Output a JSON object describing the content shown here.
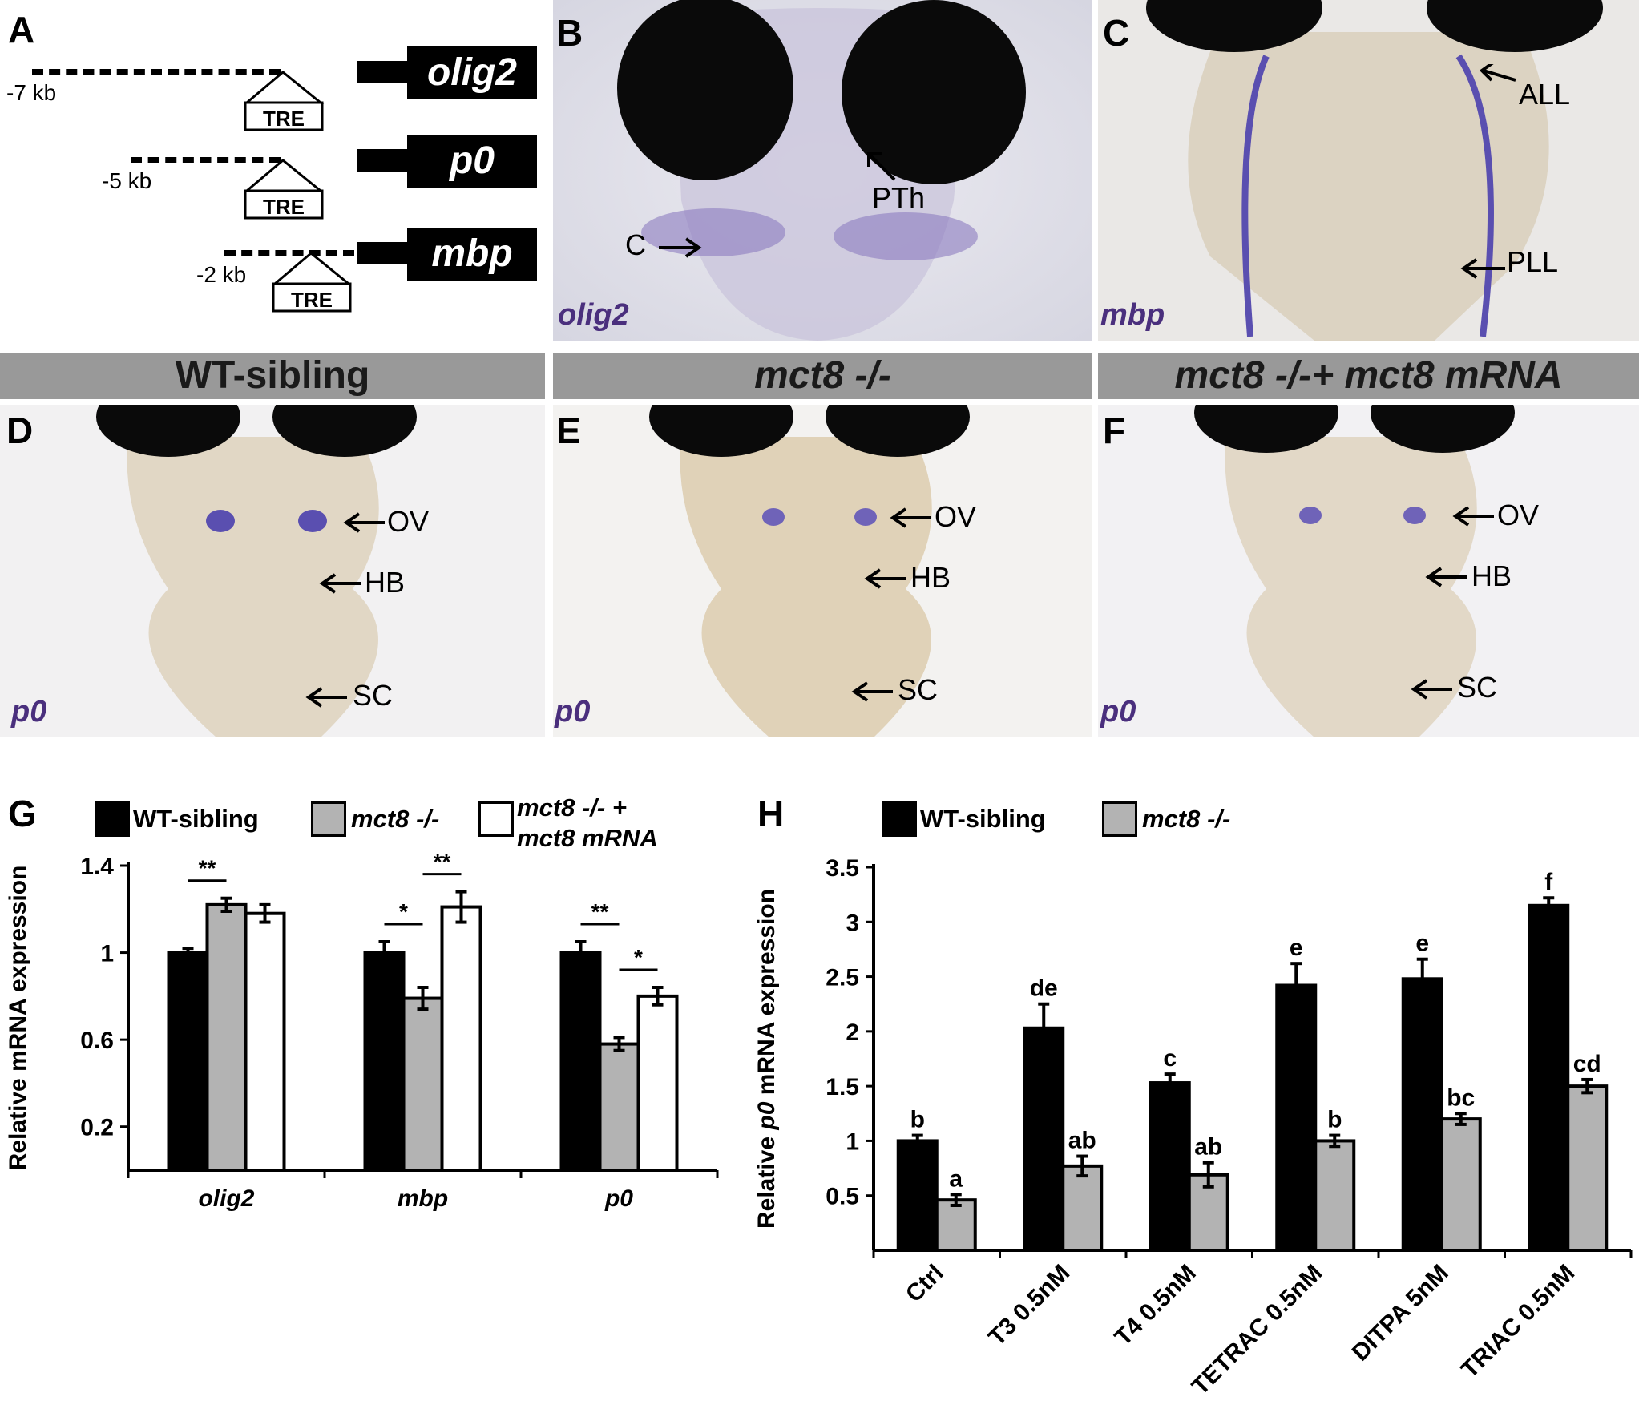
{
  "panel_letters": {
    "A": "A",
    "B": "B",
    "C": "C",
    "D": "D",
    "E": "E",
    "F": "F",
    "G": "G",
    "H": "H"
  },
  "panel_a": {
    "genes": [
      {
        "name": "olig2",
        "distance": "-7 kb",
        "element": "TRE"
      },
      {
        "name": "p0",
        "distance": "-5 kb",
        "element": "TRE"
      },
      {
        "name": "mbp",
        "distance": "-2 kb",
        "element": "TRE"
      }
    ]
  },
  "panel_b": {
    "gene": "olig2",
    "labels": {
      "c": "C",
      "pth": "PTh"
    }
  },
  "panel_c": {
    "gene": "mbp",
    "labels": {
      "all": "ALL",
      "pll": "PLL"
    }
  },
  "headers": {
    "d": "WT-sibling",
    "e": "mct8 -/-",
    "f": "mct8 -/-+ mct8 mRNA"
  },
  "panel_d": {
    "gene": "p0",
    "labels": {
      "ov": "OV",
      "hb": "HB",
      "sc": "SC"
    }
  },
  "panel_e": {
    "gene": "p0",
    "labels": {
      "ov": "OV",
      "hb": "HB",
      "sc": "SC"
    }
  },
  "panel_f": {
    "gene": "p0",
    "labels": {
      "ov": "OV",
      "hb": "HB",
      "sc": "SC"
    }
  },
  "colors": {
    "wt": "#000000",
    "mct8": "#b3b3b3",
    "rescue": "#ffffff",
    "stain": "#4a2f7d"
  },
  "chart_data": [
    {
      "panel": "G",
      "type": "bar",
      "ylabel": "Relative mRNA expression",
      "ylim": [
        0,
        1.4
      ],
      "yticks": [
        0.2,
        0.6,
        1,
        1.4
      ],
      "yticklabels": [
        "0.2",
        "0.6",
        "1",
        "1.4"
      ],
      "categories": [
        "olig2",
        "mbp",
        "p0"
      ],
      "legend": [
        {
          "name": "WT-sibling"
        },
        {
          "name": "mct8 -/-"
        },
        {
          "name_line1": "mct8 -/- +",
          "name_line2": "mct8 mRNA"
        }
      ],
      "series": [
        {
          "name": "WT-sibling",
          "values": [
            1.0,
            1.0,
            1.0
          ],
          "errors": [
            0.02,
            0.05,
            0.05
          ]
        },
        {
          "name": "mct8 -/-",
          "values": [
            1.22,
            0.79,
            0.58
          ],
          "errors": [
            0.03,
            0.05,
            0.03
          ]
        },
        {
          "name": "mct8 -/- + mct8 mRNA",
          "values": [
            1.18,
            1.21,
            0.8
          ],
          "errors": [
            0.04,
            0.07,
            0.04
          ]
        }
      ],
      "significance": [
        {
          "category": "olig2",
          "from": 0,
          "to": 1,
          "label": "**"
        },
        {
          "category": "mbp",
          "from": 0,
          "to": 1,
          "label": "*"
        },
        {
          "category": "mbp",
          "from": 1,
          "to": 2,
          "label": "**"
        },
        {
          "category": "p0",
          "from": 0,
          "to": 1,
          "label": "**"
        },
        {
          "category": "p0",
          "from": 1,
          "to": 2,
          "label": "*"
        }
      ]
    },
    {
      "panel": "H",
      "type": "bar",
      "ylabel_prefix": "Relative ",
      "ylabel_gene": "p0",
      "ylabel_suffix": " mRNA expression",
      "ylim": [
        0,
        3.5
      ],
      "yticks": [
        0.5,
        1,
        1.5,
        2,
        2.5,
        3,
        3.5
      ],
      "yticklabels": [
        "0.5",
        "1",
        "1.5",
        "2",
        "2.5",
        "3",
        "3.5"
      ],
      "categories": [
        "Ctrl",
        "T3 0.5nM",
        "T4 0.5nM",
        "TETRAC 0.5nM",
        "DITPA 5nM",
        "TRIAC 0.5nM"
      ],
      "legend": [
        {
          "name": "WT-sibling"
        },
        {
          "name": "mct8 -/-"
        }
      ],
      "series": [
        {
          "name": "WT-sibling",
          "values": [
            1.0,
            2.03,
            1.53,
            2.42,
            2.48,
            3.15
          ],
          "errors": [
            0.05,
            0.22,
            0.08,
            0.2,
            0.18,
            0.07
          ],
          "letters": [
            "b",
            "de",
            "c",
            "e",
            "e",
            "f"
          ]
        },
        {
          "name": "mct8 -/-",
          "values": [
            0.46,
            0.77,
            0.69,
            1.0,
            1.2,
            1.5
          ],
          "errors": [
            0.05,
            0.09,
            0.11,
            0.05,
            0.05,
            0.06
          ],
          "letters": [
            "a",
            "ab",
            "ab",
            "b",
            "bc",
            "cd"
          ]
        }
      ]
    }
  ]
}
